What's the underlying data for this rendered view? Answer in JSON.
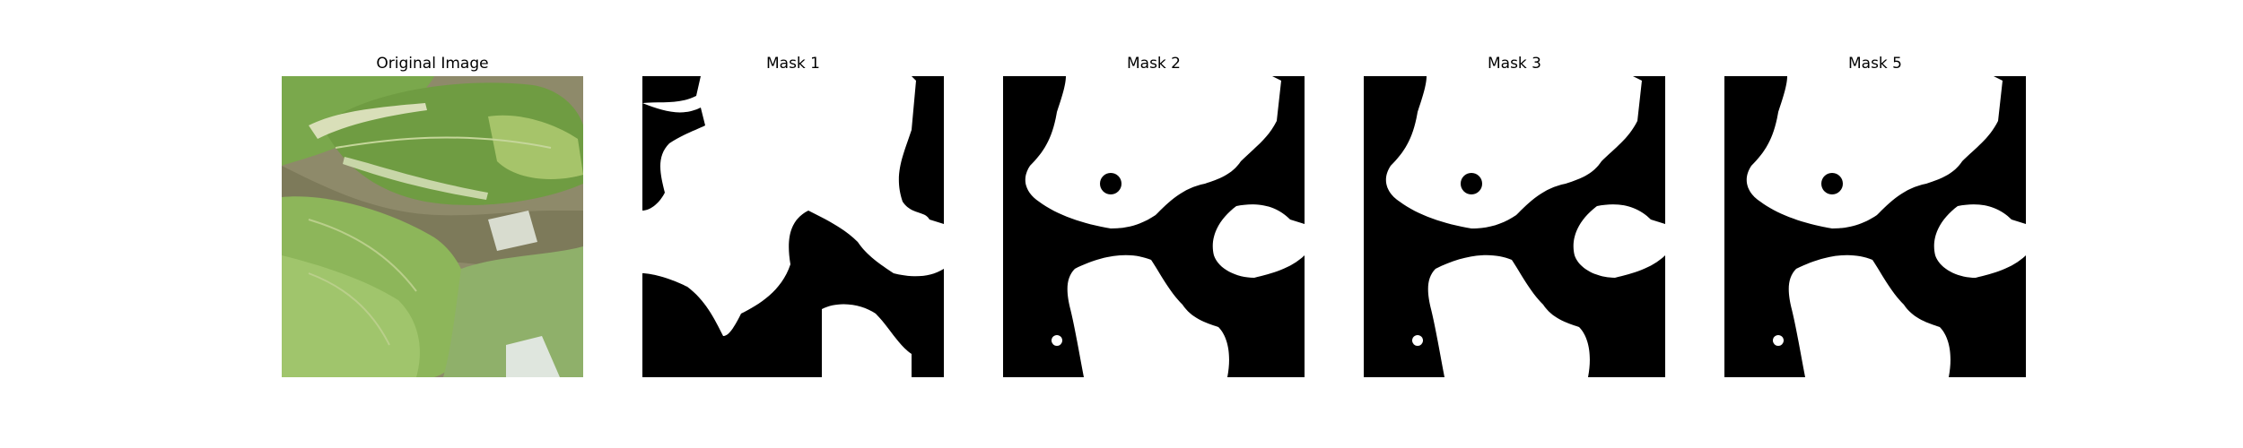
{
  "figure": {
    "panels": [
      {
        "title": "Original Image",
        "kind": "photo"
      },
      {
        "title": "Mask 1",
        "kind": "mask"
      },
      {
        "title": "Mask 2",
        "kind": "mask"
      },
      {
        "title": "Mask 3",
        "kind": "mask"
      },
      {
        "title": "Mask 5",
        "kind": "mask"
      }
    ]
  },
  "colors": {
    "mask_foreground": "#ffffff",
    "mask_background": "#000000",
    "leaf_light": "#9cc26a",
    "leaf_mid": "#7aa84c",
    "leaf_dark": "#4f7a34",
    "stem": "#d9dfb9",
    "background_brown": "#8e8a6a"
  }
}
